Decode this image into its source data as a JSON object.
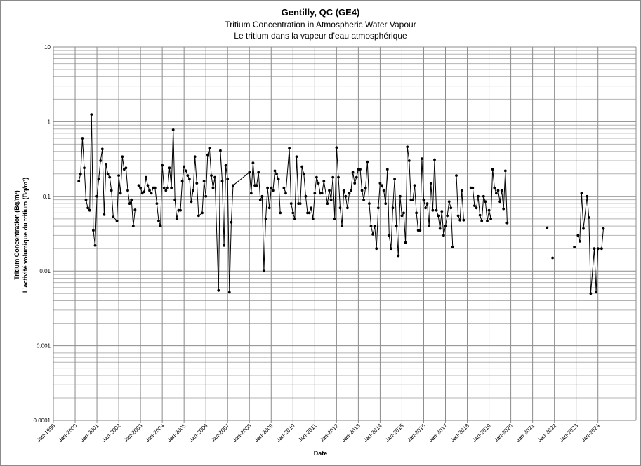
{
  "chart_data": {
    "type": "line",
    "title": "Gentilly, QC (GE4)",
    "subtitle": "Tritium Concentration in Atmospheric Water Vapour",
    "subtitle_fr": "Le tritium dans la vapeur d'eau atmosphérique",
    "ylabel": "Tritium Concentration (Bq/m³)",
    "ylabel_fr": "L'activité volumique du tritium (Bq/m³)",
    "xlabel": "Date",
    "y_scale": "log",
    "ylim": [
      0.0001,
      10
    ],
    "xlim": [
      "1999-01",
      "2025-10"
    ],
    "y_ticks": [
      "0.0001",
      "0.001",
      "0.01",
      "0.1",
      "1",
      "10"
    ],
    "x_ticks": [
      "Jan-1999",
      "Jan-2000",
      "Jan-2001",
      "Jan-2002",
      "Jan-2003",
      "Jan-2004",
      "Jan-2005",
      "Jan-2006",
      "Jan-2007",
      "Jan-2008",
      "Jan-2009",
      "Jan-2010",
      "Jan-2011",
      "Jan-2012",
      "Jan-2013",
      "Jan-2014",
      "Jan-2015",
      "Jan-2016",
      "Jan-2017",
      "Jan-2018",
      "Jan-2019",
      "Jan-2020",
      "Jan-2021",
      "Jan-2022",
      "Jan-2023",
      "Jan-2024"
    ],
    "grid": true,
    "series": [
      {
        "color": "#000000",
        "segments": [
          [
            [
              "2000-03",
              0.16
            ],
            [
              "2000-04",
              0.2
            ],
            [
              "2000-05",
              0.6
            ],
            [
              "2000-06",
              0.24
            ],
            [
              "2000-07",
              0.09
            ],
            [
              "2000-08",
              0.07
            ],
            [
              "2000-09",
              0.065
            ],
            [
              "2000-10",
              1.25
            ],
            [
              "2000-11",
              0.035
            ],
            [
              "2000-12",
              0.022
            ],
            [
              "2001-01",
              0.1
            ],
            [
              "2001-02",
              0.17
            ],
            [
              "2001-03",
              0.3
            ],
            [
              "2001-04",
              0.43
            ],
            [
              "2001-05",
              0.057
            ],
            [
              "2001-06",
              0.27
            ],
            [
              "2001-07",
              0.2
            ],
            [
              "2001-08",
              0.18
            ],
            [
              "2001-09",
              0.12
            ],
            [
              "2001-10",
              0.053
            ],
            [
              "2001-12",
              0.047
            ],
            [
              "2002-01",
              0.19
            ],
            [
              "2002-02",
              0.11
            ],
            [
              "2002-03",
              0.34
            ],
            [
              "2002-04",
              0.23
            ],
            [
              "2002-05",
              0.24
            ],
            [
              "2002-06",
              0.12
            ],
            [
              "2002-07",
              0.08
            ],
            [
              "2002-08",
              0.09
            ],
            [
              "2002-09",
              0.04
            ],
            [
              "2002-10",
              0.066
            ]
          ],
          [
            [
              "2002-12",
              0.14
            ],
            [
              "2003-01",
              0.13
            ],
            [
              "2003-02",
              0.11
            ],
            [
              "2003-03",
              0.115
            ],
            [
              "2003-04",
              0.18
            ],
            [
              "2003-05",
              0.14
            ],
            [
              "2003-06",
              0.12
            ],
            [
              "2003-07",
              0.11
            ],
            [
              "2003-08",
              0.13
            ],
            [
              "2003-09",
              0.13
            ],
            [
              "2003-10",
              0.08
            ],
            [
              "2003-11",
              0.047
            ],
            [
              "2003-12",
              0.04
            ],
            [
              "2004-01",
              0.26
            ],
            [
              "2004-02",
              0.13
            ],
            [
              "2004-03",
              0.12
            ],
            [
              "2004-04",
              0.13
            ],
            [
              "2004-05",
              0.24
            ],
            [
              "2004-06",
              0.13
            ],
            [
              "2004-07",
              0.78
            ],
            [
              "2004-08",
              0.09
            ],
            [
              "2004-09",
              0.05
            ],
            [
              "2004-10",
              0.065
            ],
            [
              "2004-11",
              0.065
            ],
            [
              "2004-12",
              0.16
            ],
            [
              "2005-01",
              0.25
            ],
            [
              "2005-02",
              0.22
            ],
            [
              "2005-03",
              0.19
            ],
            [
              "2005-04",
              0.17
            ],
            [
              "2005-05",
              0.085
            ],
            [
              "2005-06",
              0.12
            ],
            [
              "2005-07",
              0.34
            ],
            [
              "2005-08",
              0.15
            ],
            [
              "2005-09",
              0.055
            ],
            [
              "2005-11",
              0.06
            ],
            [
              "2005-12",
              0.16
            ],
            [
              "2006-01",
              0.1
            ],
            [
              "2006-02",
              0.36
            ],
            [
              "2006-03",
              0.44
            ],
            [
              "2006-04",
              0.19
            ],
            [
              "2006-05",
              0.13
            ],
            [
              "2006-06",
              0.18
            ],
            [
              "2006-08",
              0.0055
            ],
            [
              "2006-09",
              0.41
            ],
            [
              "2006-10",
              0.16
            ],
            [
              "2006-11",
              0.022
            ],
            [
              "2006-12",
              0.26
            ],
            [
              "2007-01",
              0.17
            ],
            [
              "2007-02",
              0.0052
            ],
            [
              "2007-03",
              0.045
            ],
            [
              "2007-04",
              0.14
            ],
            [
              "2008-01",
              0.21
            ],
            [
              "2008-02",
              0.11
            ],
            [
              "2008-03",
              0.28
            ],
            [
              "2008-04",
              0.14
            ],
            [
              "2008-05",
              0.14
            ],
            [
              "2008-06",
              0.21
            ],
            [
              "2008-07",
              0.09
            ],
            [
              "2008-08",
              0.1
            ],
            [
              "2008-09",
              0.01
            ],
            [
              "2008-10",
              0.05
            ],
            [
              "2008-11",
              0.13
            ],
            [
              "2008-12",
              0.07
            ],
            [
              "2009-01",
              0.13
            ],
            [
              "2009-02",
              0.12
            ],
            [
              "2009-03",
              0.22
            ],
            [
              "2009-04",
              0.2
            ],
            [
              "2009-05",
              0.17
            ],
            [
              "2009-06",
              0.06
            ]
          ],
          [
            [
              "2009-08",
              0.13
            ],
            [
              "2009-09",
              0.11
            ],
            [
              "2009-11",
              0.44
            ],
            [
              "2009-12",
              0.08
            ],
            [
              "2010-01",
              0.06
            ],
            [
              "2010-02",
              0.05
            ],
            [
              "2010-03",
              0.34
            ],
            [
              "2010-04",
              0.08
            ],
            [
              "2010-05",
              0.08
            ],
            [
              "2010-06",
              0.25
            ],
            [
              "2010-07",
              0.2
            ],
            [
              "2010-08",
              0.1
            ],
            [
              "2010-09",
              0.06
            ],
            [
              "2010-10",
              0.06
            ],
            [
              "2010-11",
              0.07
            ],
            [
              "2010-12",
              0.05
            ],
            [
              "2011-01",
              0.11
            ],
            [
              "2011-02",
              0.18
            ],
            [
              "2011-03",
              0.15
            ],
            [
              "2011-04",
              0.11
            ],
            [
              "2011-05",
              0.11
            ],
            [
              "2011-06",
              0.16
            ],
            [
              "2011-08",
              0.08
            ],
            [
              "2011-09",
              0.12
            ],
            [
              "2011-10",
              0.09
            ],
            [
              "2011-11",
              0.18
            ],
            [
              "2011-12",
              0.05
            ],
            [
              "2012-01",
              0.45
            ],
            [
              "2012-02",
              0.18
            ],
            [
              "2012-03",
              0.07
            ],
            [
              "2012-04",
              0.04
            ],
            [
              "2012-05",
              0.12
            ],
            [
              "2012-06",
              0.1
            ],
            [
              "2012-07",
              0.07
            ],
            [
              "2012-08",
              0.11
            ],
            [
              "2012-09",
              0.12
            ],
            [
              "2012-10",
              0.21
            ],
            [
              "2012-11",
              0.15
            ],
            [
              "2012-12",
              0.18
            ],
            [
              "2013-01",
              0.23
            ],
            [
              "2013-02",
              0.23
            ],
            [
              "2013-03",
              0.12
            ],
            [
              "2013-04",
              0.09
            ],
            [
              "2013-05",
              0.13
            ],
            [
              "2013-06",
              0.29
            ],
            [
              "2013-07",
              0.08
            ],
            [
              "2013-08",
              0.04
            ],
            [
              "2013-09",
              0.031
            ],
            [
              "2013-10",
              0.04
            ],
            [
              "2013-11",
              0.02
            ],
            [
              "2013-12",
              0.07
            ],
            [
              "2014-01",
              0.15
            ],
            [
              "2014-02",
              0.14
            ],
            [
              "2014-03",
              0.12
            ],
            [
              "2014-04",
              0.08
            ],
            [
              "2014-05",
              0.23
            ],
            [
              "2014-06",
              0.03
            ],
            [
              "2014-07",
              0.02
            ],
            [
              "2014-08",
              0.07
            ],
            [
              "2014-09",
              0.17
            ],
            [
              "2014-10",
              0.04
            ],
            [
              "2014-11",
              0.016
            ],
            [
              "2014-12",
              0.1
            ],
            [
              "2015-01",
              0.055
            ],
            [
              "2015-02",
              0.06
            ],
            [
              "2015-03",
              0.024
            ],
            [
              "2015-04",
              0.46
            ],
            [
              "2015-05",
              0.3
            ],
            [
              "2015-06",
              0.09
            ],
            [
              "2015-07",
              0.09
            ],
            [
              "2015-08",
              0.14
            ],
            [
              "2015-09",
              0.06
            ],
            [
              "2015-10",
              0.035
            ],
            [
              "2015-11",
              0.035
            ],
            [
              "2015-12",
              0.32
            ],
            [
              "2016-01",
              0.09
            ],
            [
              "2016-02",
              0.07
            ],
            [
              "2016-03",
              0.08
            ],
            [
              "2016-04",
              0.04
            ],
            [
              "2016-05",
              0.15
            ],
            [
              "2016-06",
              0.065
            ],
            [
              "2016-07",
              0.31
            ],
            [
              "2016-08",
              0.065
            ],
            [
              "2016-09",
              0.055
            ],
            [
              "2016-10",
              0.037
            ],
            [
              "2016-11",
              0.063
            ],
            [
              "2016-12",
              0.03
            ],
            [
              "2017-01",
              0.04
            ],
            [
              "2017-02",
              0.055
            ],
            [
              "2017-03",
              0.085
            ],
            [
              "2017-04",
              0.07
            ],
            [
              "2017-05",
              0.021
            ]
          ],
          [
            [
              "2017-07",
              0.19
            ],
            [
              "2017-08",
              0.055
            ],
            [
              "2017-09",
              0.048
            ],
            [
              "2017-10",
              0.12
            ],
            [
              "2017-11",
              0.048
            ]
          ],
          [
            [
              "2018-03",
              0.13
            ],
            [
              "2018-04",
              0.13
            ],
            [
              "2018-05",
              0.075
            ],
            [
              "2018-06",
              0.07
            ],
            [
              "2018-07",
              0.1
            ],
            [
              "2018-08",
              0.056
            ],
            [
              "2018-09",
              0.047
            ],
            [
              "2018-10",
              0.1
            ],
            [
              "2018-11",
              0.085
            ],
            [
              "2018-12",
              0.047
            ],
            [
              "2019-01",
              0.065
            ],
            [
              "2019-02",
              0.05
            ],
            [
              "2019-03",
              0.23
            ],
            [
              "2019-04",
              0.13
            ],
            [
              "2019-05",
              0.11
            ],
            [
              "2019-06",
              0.12
            ],
            [
              "2019-07",
              0.085
            ],
            [
              "2019-08",
              0.12
            ],
            [
              "2019-09",
              0.068
            ],
            [
              "2019-10",
              0.22
            ],
            [
              "2019-11",
              0.044
            ]
          ],
          [
            [
              "2021-09",
              0.038
            ]
          ],
          [
            [
              "2021-12",
              0.015
            ]
          ],
          [
            [
              "2022-12",
              0.021
            ]
          ],
          [
            [
              "2023-02",
              0.03
            ],
            [
              "2023-03",
              0.025
            ],
            [
              "2023-04",
              0.11
            ],
            [
              "2023-05",
              0.037
            ],
            [
              "2023-07",
              0.1
            ],
            [
              "2023-08",
              0.052
            ],
            [
              "2023-09",
              0.005
            ],
            [
              "2023-11",
              0.02
            ],
            [
              "2023-12",
              0.0052
            ],
            [
              "2024-01",
              0.02
            ],
            [
              "2024-03",
              0.02
            ],
            [
              "2024-04",
              0.037
            ]
          ]
        ]
      }
    ]
  }
}
